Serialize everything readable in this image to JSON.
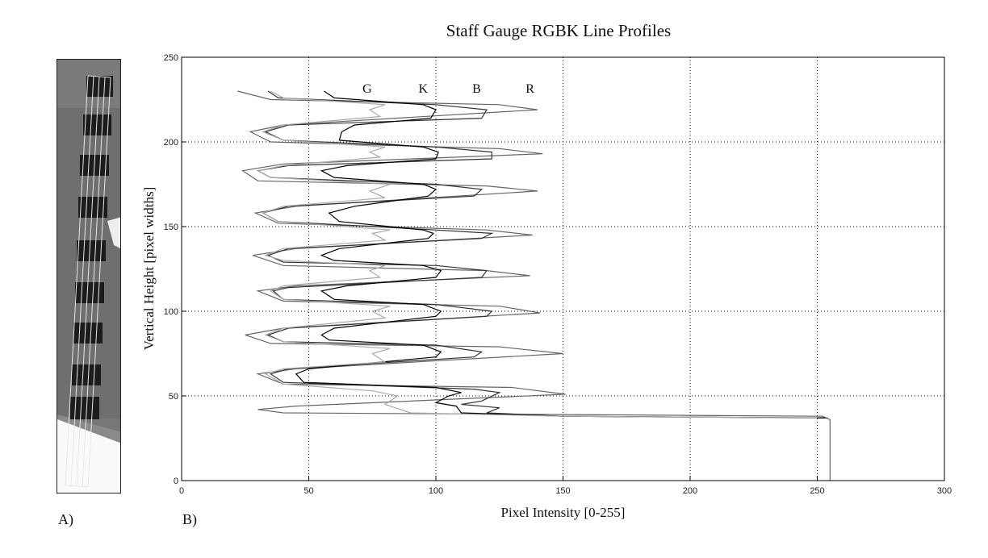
{
  "figure": {
    "title": "Staff Gauge RGBK Line Profiles",
    "panel_a_label": "A)",
    "panel_b_label": "B)",
    "xlabel": "Pixel Intensity [0-255]",
    "ylabel": "Vertical Height [pixel widths]"
  },
  "chart_data": {
    "type": "line",
    "title": "Staff Gauge RGBK Line Profiles",
    "xlabel": "Pixel Intensity [0-255]",
    "ylabel": "Vertical Height [pixel widths]",
    "xlim": [
      0,
      300
    ],
    "ylim": [
      0,
      250
    ],
    "xticks": [
      0,
      50,
      100,
      150,
      200,
      250,
      300
    ],
    "yticks": [
      0,
      50,
      100,
      150,
      200,
      250
    ],
    "grid": true,
    "legend_position": "in-plot text labels at top",
    "annotations": [
      "G",
      "K",
      "B",
      "R"
    ],
    "series": [
      {
        "name": "R",
        "color": "#666666",
        "points": [
          [
            255,
            0
          ],
          [
            255,
            36
          ],
          [
            252,
            38
          ],
          [
            150,
            39
          ],
          [
            40,
            40
          ],
          [
            30,
            42
          ],
          [
            45,
            44
          ],
          [
            151,
            51
          ],
          [
            130,
            55
          ],
          [
            40,
            57
          ],
          [
            30,
            63
          ],
          [
            45,
            66
          ],
          [
            150,
            75
          ],
          [
            125,
            79
          ],
          [
            35,
            81
          ],
          [
            25,
            86
          ],
          [
            40,
            90
          ],
          [
            141,
            99
          ],
          [
            125,
            103
          ],
          [
            40,
            106
          ],
          [
            30,
            112
          ],
          [
            45,
            115
          ],
          [
            137,
            121
          ],
          [
            120,
            124
          ],
          [
            40,
            127
          ],
          [
            28,
            133
          ],
          [
            45,
            137
          ],
          [
            138,
            145
          ],
          [
            120,
            148
          ],
          [
            38,
            152
          ],
          [
            29,
            158
          ],
          [
            45,
            162
          ],
          [
            140,
            171
          ],
          [
            120,
            174
          ],
          [
            30,
            177
          ],
          [
            24,
            183
          ],
          [
            40,
            187
          ],
          [
            142,
            193
          ],
          [
            125,
            196
          ],
          [
            35,
            200
          ],
          [
            27,
            206
          ],
          [
            40,
            210
          ],
          [
            140,
            219
          ],
          [
            125,
            222
          ],
          [
            35,
            225
          ],
          [
            22,
            230
          ]
        ]
      },
      {
        "name": "B",
        "color": "#333333",
        "points": [
          [
            254,
            37
          ],
          [
            150,
            38
          ],
          [
            120,
            40
          ],
          [
            125,
            43
          ],
          [
            110,
            45
          ],
          [
            118,
            47
          ],
          [
            125,
            52
          ],
          [
            115,
            54
          ],
          [
            40,
            58
          ],
          [
            35,
            63
          ],
          [
            42,
            66
          ],
          [
            115,
            73
          ],
          [
            118,
            76
          ],
          [
            100,
            80
          ],
          [
            40,
            82
          ],
          [
            34,
            86
          ],
          [
            42,
            90
          ],
          [
            120,
            97
          ],
          [
            122,
            100
          ],
          [
            100,
            104
          ],
          [
            40,
            107
          ],
          [
            36,
            112
          ],
          [
            42,
            114
          ],
          [
            118,
            120
          ],
          [
            120,
            124
          ],
          [
            100,
            127
          ],
          [
            40,
            129
          ],
          [
            34,
            133
          ],
          [
            42,
            137
          ],
          [
            118,
            143
          ],
          [
            122,
            146
          ],
          [
            100,
            148
          ],
          [
            38,
            153
          ],
          [
            32,
            158
          ],
          [
            42,
            162
          ],
          [
            115,
            168
          ],
          [
            118,
            172
          ],
          [
            100,
            175
          ],
          [
            35,
            179
          ],
          [
            30,
            183
          ],
          [
            42,
            186
          ],
          [
            122,
            190
          ],
          [
            122,
            194
          ],
          [
            100,
            197
          ],
          [
            40,
            201
          ],
          [
            33,
            206
          ],
          [
            42,
            210
          ],
          [
            118,
            214
          ],
          [
            120,
            219
          ],
          [
            100,
            222
          ],
          [
            38,
            226
          ],
          [
            34,
            230
          ]
        ]
      },
      {
        "name": "K",
        "color": "#000000",
        "points": [
          [
            253,
            37
          ],
          [
            150,
            38
          ],
          [
            110,
            40
          ],
          [
            108,
            44
          ],
          [
            100,
            46
          ],
          [
            105,
            50
          ],
          [
            110,
            52
          ],
          [
            100,
            55
          ],
          [
            48,
            58
          ],
          [
            45,
            63
          ],
          [
            50,
            66
          ],
          [
            100,
            73
          ],
          [
            102,
            76
          ],
          [
            95,
            80
          ],
          [
            58,
            83
          ],
          [
            55,
            86
          ],
          [
            60,
            90
          ],
          [
            100,
            97
          ],
          [
            102,
            100
          ],
          [
            95,
            104
          ],
          [
            60,
            107
          ],
          [
            55,
            112
          ],
          [
            65,
            115
          ],
          [
            100,
            120
          ],
          [
            102,
            124
          ],
          [
            95,
            127
          ],
          [
            60,
            130
          ],
          [
            55,
            133
          ],
          [
            62,
            137
          ],
          [
            97,
            143
          ],
          [
            99,
            146
          ],
          [
            95,
            148
          ],
          [
            62,
            153
          ],
          [
            58,
            158
          ],
          [
            68,
            162
          ],
          [
            97,
            168
          ],
          [
            100,
            172
          ],
          [
            95,
            175
          ],
          [
            60,
            179
          ],
          [
            55,
            183
          ],
          [
            65,
            186
          ],
          [
            100,
            190
          ],
          [
            101,
            194
          ],
          [
            95,
            197
          ],
          [
            62,
            201
          ],
          [
            63,
            206
          ],
          [
            68,
            210
          ],
          [
            98,
            214
          ],
          [
            100,
            219
          ],
          [
            95,
            222
          ],
          [
            60,
            226
          ],
          [
            56,
            230
          ]
        ]
      },
      {
        "name": "G",
        "color": "#aaaaaa",
        "points": [
          [
            250,
            37
          ],
          [
            150,
            38
          ],
          [
            90,
            40
          ],
          [
            80,
            45
          ],
          [
            85,
            50
          ],
          [
            75,
            53
          ],
          [
            40,
            57
          ],
          [
            33,
            63
          ],
          [
            40,
            66
          ],
          [
            80,
            70
          ],
          [
            75,
            75
          ],
          [
            82,
            78
          ],
          [
            40,
            82
          ],
          [
            33,
            86
          ],
          [
            40,
            90
          ],
          [
            80,
            96
          ],
          [
            75,
            100
          ],
          [
            82,
            103
          ],
          [
            40,
            107
          ],
          [
            35,
            112
          ],
          [
            40,
            115
          ],
          [
            78,
            120
          ],
          [
            74,
            124
          ],
          [
            80,
            127
          ],
          [
            40,
            130
          ],
          [
            33,
            133
          ],
          [
            40,
            137
          ],
          [
            80,
            142
          ],
          [
            75,
            146
          ],
          [
            82,
            148
          ],
          [
            38,
            153
          ],
          [
            32,
            158
          ],
          [
            40,
            162
          ],
          [
            80,
            167
          ],
          [
            74,
            171
          ],
          [
            82,
            175
          ],
          [
            35,
            179
          ],
          [
            30,
            183
          ],
          [
            40,
            186
          ],
          [
            78,
            191
          ],
          [
            74,
            194
          ],
          [
            80,
            197
          ],
          [
            40,
            201
          ],
          [
            32,
            206
          ],
          [
            40,
            210
          ],
          [
            78,
            215
          ],
          [
            74,
            219
          ],
          [
            80,
            222
          ],
          [
            40,
            226
          ],
          [
            35,
            230
          ]
        ]
      }
    ]
  }
}
